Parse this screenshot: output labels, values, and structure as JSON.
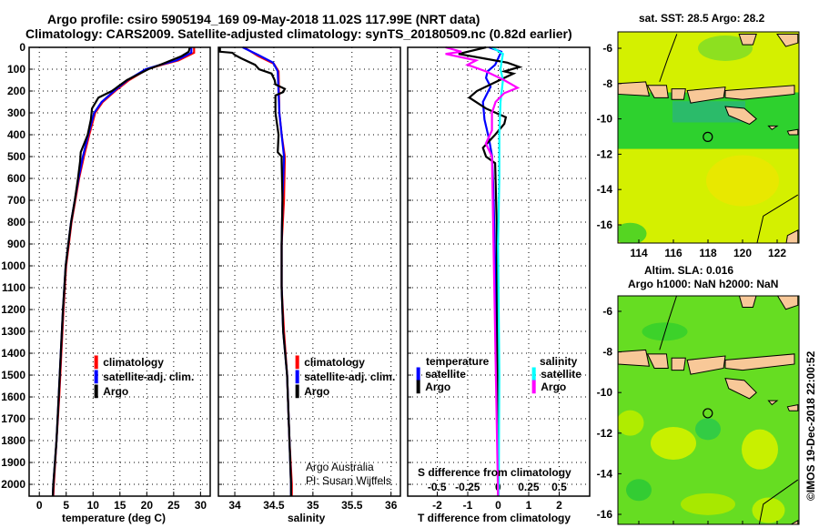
{
  "title": {
    "line1": "Argo profile: csiro 5905194_169 09-May-2018 11.02S 117.99E (NRT data)",
    "line2": "Climatology: CARS2009. Satellite-adjusted climatology: synTS_20180509.nc (0.82d earlier)"
  },
  "watermark": "©IMOS 19-Dec-2018 22:00:52",
  "credit": {
    "line1": "Argo Australia",
    "line2": "PI: Susan Wijffels"
  },
  "colors": {
    "climatology": "#ff0000",
    "satellite": "#0000ff",
    "argo": "#000000",
    "s_satellite": "#00ffff",
    "s_argo": "#ff00ff"
  },
  "chart_data": [
    {
      "type": "line",
      "id": "temperature",
      "xlabel": "temperature (deg C)",
      "ylabel": "depth",
      "xlim": [
        -1.9,
        31.8
      ],
      "ylim": [
        0,
        2054
      ],
      "xticks": [
        0,
        5,
        10,
        15,
        20,
        25,
        30
      ],
      "yticks": [
        0,
        100,
        200,
        300,
        400,
        500,
        600,
        700,
        800,
        900,
        1000,
        1100,
        1200,
        1300,
        1400,
        1500,
        1600,
        1700,
        1800,
        1900,
        2000
      ],
      "grid": true,
      "legend": {
        "placement": "lower-right",
        "entries": [
          "climatology",
          "satellite-adj. clim.",
          "Argo"
        ]
      },
      "series": [
        {
          "name": "climatology",
          "color": "#ff0000",
          "points": [
            [
              28.8,
              0
            ],
            [
              28.8,
              25
            ],
            [
              25.9,
              60
            ],
            [
              22.8,
              80
            ],
            [
              20.1,
              100
            ],
            [
              16.7,
              150
            ],
            [
              14.1,
              200
            ],
            [
              11.8,
              250
            ],
            [
              10.4,
              300
            ],
            [
              9.3,
              400
            ],
            [
              8.3,
              500
            ],
            [
              7.4,
              600
            ],
            [
              6.7,
              700
            ],
            [
              6.0,
              800
            ],
            [
              5.5,
              900
            ],
            [
              5.0,
              1000
            ],
            [
              4.5,
              1200
            ],
            [
              4.1,
              1400
            ],
            [
              3.7,
              1600
            ],
            [
              3.2,
              1800
            ],
            [
              2.7,
              2000
            ],
            [
              2.6,
              2054
            ]
          ]
        },
        {
          "name": "satellite-adj. clim.",
          "color": "#0000ff",
          "points": [
            [
              28.3,
              0
            ],
            [
              28.3,
              25
            ],
            [
              25.5,
              60
            ],
            [
              22.5,
              80
            ],
            [
              19.8,
              100
            ],
            [
              16.4,
              150
            ],
            [
              13.9,
              200
            ],
            [
              11.6,
              250
            ],
            [
              10.2,
              300
            ],
            [
              9.1,
              400
            ],
            [
              8.1,
              500
            ],
            [
              7.3,
              600
            ],
            [
              6.6,
              700
            ],
            [
              5.9,
              800
            ],
            [
              5.4,
              900
            ],
            [
              4.9,
              1000
            ],
            [
              4.4,
              1200
            ],
            [
              4.0,
              1400
            ],
            [
              3.6,
              1600
            ],
            [
              3.2,
              1800
            ],
            [
              2.6,
              2000
            ],
            [
              2.5,
              2054
            ]
          ]
        },
        {
          "name": "Argo",
          "color": "#000000",
          "points": [
            [
              28.0,
              0
            ],
            [
              27.8,
              20
            ],
            [
              26.5,
              40
            ],
            [
              24.5,
              60
            ],
            [
              22.5,
              80
            ],
            [
              20.3,
              100
            ],
            [
              16.3,
              150
            ],
            [
              13.5,
              200
            ],
            [
              11.0,
              230
            ],
            [
              9.8,
              280
            ],
            [
              9.6,
              330
            ],
            [
              9.0,
              400
            ],
            [
              7.7,
              480
            ],
            [
              7.6,
              520
            ],
            [
              7.2,
              600
            ],
            [
              6.6,
              700
            ],
            [
              5.9,
              800
            ],
            [
              5.4,
              900
            ],
            [
              4.9,
              1000
            ],
            [
              4.4,
              1200
            ],
            [
              4.0,
              1400
            ],
            [
              3.6,
              1600
            ],
            [
              3.2,
              1800
            ],
            [
              2.6,
              2000
            ],
            [
              2.5,
              2054
            ]
          ]
        }
      ]
    },
    {
      "type": "line",
      "id": "salinity",
      "xlabel": "salinity",
      "xlim": [
        33.79,
        36.12
      ],
      "ylim": [
        0,
        2054
      ],
      "xticks": [
        34,
        34.5,
        35,
        35.5,
        36
      ],
      "grid": true,
      "legend": {
        "placement": "lower-right",
        "entries": [
          "climatology",
          "satellite-adj. clim.",
          "Argo"
        ]
      },
      "series": [
        {
          "name": "climatology",
          "color": "#ff0000",
          "points": [
            [
              34.12,
              0
            ],
            [
              34.3,
              40
            ],
            [
              34.5,
              75
            ],
            [
              34.56,
              110
            ],
            [
              34.57,
              300
            ],
            [
              34.6,
              400
            ],
            [
              34.64,
              500
            ],
            [
              34.63,
              700
            ],
            [
              34.6,
              900
            ],
            [
              34.6,
              1100
            ],
            [
              34.63,
              1300
            ],
            [
              34.67,
              1500
            ],
            [
              34.7,
              1800
            ],
            [
              34.73,
              2000
            ],
            [
              34.73,
              2054
            ]
          ]
        },
        {
          "name": "satellite-adj. clim.",
          "color": "#0000ff",
          "points": [
            [
              34.1,
              0
            ],
            [
              34.3,
              35
            ],
            [
              34.49,
              70
            ],
            [
              34.55,
              110
            ],
            [
              34.57,
              300
            ],
            [
              34.6,
              400
            ],
            [
              34.63,
              500
            ],
            [
              34.61,
              700
            ],
            [
              34.6,
              900
            ],
            [
              34.6,
              1100
            ],
            [
              34.62,
              1300
            ],
            [
              34.67,
              1500
            ],
            [
              34.7,
              1800
            ],
            [
              34.72,
              2000
            ],
            [
              34.72,
              2054
            ]
          ]
        },
        {
          "name": "Argo",
          "color": "#000000",
          "points": [
            [
              33.81,
              0
            ],
            [
              33.81,
              20
            ],
            [
              33.97,
              25
            ],
            [
              34.0,
              35
            ],
            [
              34.08,
              50
            ],
            [
              34.26,
              80
            ],
            [
              34.31,
              100
            ],
            [
              34.47,
              120
            ],
            [
              34.51,
              150
            ],
            [
              34.52,
              170
            ],
            [
              34.64,
              190
            ],
            [
              34.62,
              205
            ],
            [
              34.52,
              220
            ],
            [
              34.52,
              300
            ],
            [
              34.56,
              400
            ],
            [
              34.55,
              480
            ],
            [
              34.6,
              500
            ],
            [
              34.6,
              520
            ],
            [
              34.61,
              700
            ],
            [
              34.6,
              900
            ],
            [
              34.6,
              1100
            ],
            [
              34.62,
              1300
            ],
            [
              34.67,
              1500
            ],
            [
              34.7,
              1800
            ],
            [
              34.72,
              2000
            ],
            [
              34.72,
              2054
            ]
          ]
        }
      ]
    },
    {
      "type": "line",
      "id": "differences",
      "xlabel": "T difference from climatology",
      "xlabel2": "S difference from climatology",
      "xlim": [
        -2.97,
        3.0
      ],
      "xlim_s": [
        -0.74,
        0.75
      ],
      "ylim": [
        0,
        2054
      ],
      "xticks": [
        -2,
        -1,
        0,
        1,
        2
      ],
      "xticks_s": [
        -0.5,
        -0.25,
        0,
        0.25,
        0.5
      ],
      "xticklabels_s": [
        "-0.5",
        "-0.25",
        "0",
        "0.25",
        "0.5"
      ],
      "grid": true,
      "legend": {
        "placement": "lower",
        "temperature_heading": "temperature",
        "salinity_heading": "salinity",
        "entries": [
          "satellite",
          "Argo",
          "satellite",
          "Argo"
        ]
      },
      "series": [
        {
          "name": "T satellite",
          "color": "#0000ff",
          "axis": "T",
          "points": [
            [
              -0.3,
              0
            ],
            [
              0.1,
              20
            ],
            [
              0,
              50
            ],
            [
              -0.1,
              80
            ],
            [
              -0.35,
              110
            ],
            [
              -0.4,
              140
            ],
            [
              -0.25,
              180
            ],
            [
              -0.5,
              250
            ],
            [
              -0.45,
              330
            ],
            [
              -0.3,
              420
            ],
            [
              -0.2,
              500
            ],
            [
              -0.15,
              700
            ],
            [
              -0.1,
              1000
            ],
            [
              -0.05,
              1500
            ],
            [
              0,
              2054
            ]
          ]
        },
        {
          "name": "T Argo",
          "color": "#000000",
          "axis": "T",
          "points": [
            [
              -0.4,
              0
            ],
            [
              -1.3,
              30
            ],
            [
              -0.5,
              50
            ],
            [
              0.3,
              70
            ],
            [
              0.7,
              90
            ],
            [
              0.2,
              110
            ],
            [
              0.5,
              120
            ],
            [
              -0.1,
              160
            ],
            [
              -0.7,
              200
            ],
            [
              -0.95,
              230
            ],
            [
              -0.4,
              280
            ],
            [
              0.25,
              320
            ],
            [
              0.2,
              350
            ],
            [
              -0.1,
              400
            ],
            [
              -0.5,
              460
            ],
            [
              -0.4,
              500
            ],
            [
              -0.1,
              530
            ],
            [
              -0.05,
              800
            ],
            [
              0,
              2054
            ]
          ]
        },
        {
          "name": "S satellite",
          "color": "#00ffff",
          "axis": "S",
          "points": [
            [
              -0.05,
              0
            ],
            [
              0.04,
              30
            ],
            [
              0.03,
              60
            ],
            [
              0.02,
              100
            ],
            [
              0.04,
              150
            ],
            [
              0.02,
              250
            ],
            [
              0.01,
              400
            ],
            [
              0.01,
              600
            ],
            [
              0,
              900
            ],
            [
              0.01,
              1500
            ],
            [
              0.005,
              2054
            ]
          ]
        },
        {
          "name": "S Argo",
          "color": "#ff00ff",
          "axis": "S",
          "points": [
            [
              -0.43,
              0
            ],
            [
              -0.3,
              20
            ],
            [
              -0.43,
              30
            ],
            [
              -0.18,
              60
            ],
            [
              -0.25,
              80
            ],
            [
              -0.1,
              110
            ],
            [
              0.05,
              150
            ],
            [
              0.16,
              185
            ],
            [
              0.05,
              210
            ],
            [
              -0.02,
              250
            ],
            [
              -0.05,
              300
            ],
            [
              -0.05,
              380
            ],
            [
              -0.1,
              440
            ],
            [
              -0.05,
              500
            ],
            [
              0,
              2054
            ]
          ]
        }
      ]
    }
  ],
  "maps": [
    {
      "title": "sat. SST: 28.5 Argo: 28.2",
      "lon_ticks": [
        "114",
        "116",
        "118",
        "120",
        "122"
      ],
      "lat_ticks": [
        "-6",
        "-8",
        "-10",
        "-12",
        "-14",
        "-16"
      ],
      "float_lon": 117.99,
      "float_lat": -11.02
    },
    {
      "title_line1": "Altim. SLA: 0.016",
      "title_line2": "Argo h1000: NaN h2000: NaN",
      "lon_ticks": [
        "114",
        "116",
        "118",
        "120",
        "122"
      ],
      "lat_ticks": [
        "-6",
        "-8",
        "-10",
        "-12",
        "-14",
        "-16"
      ],
      "float_lon": 117.99,
      "float_lat": -11.02
    }
  ]
}
